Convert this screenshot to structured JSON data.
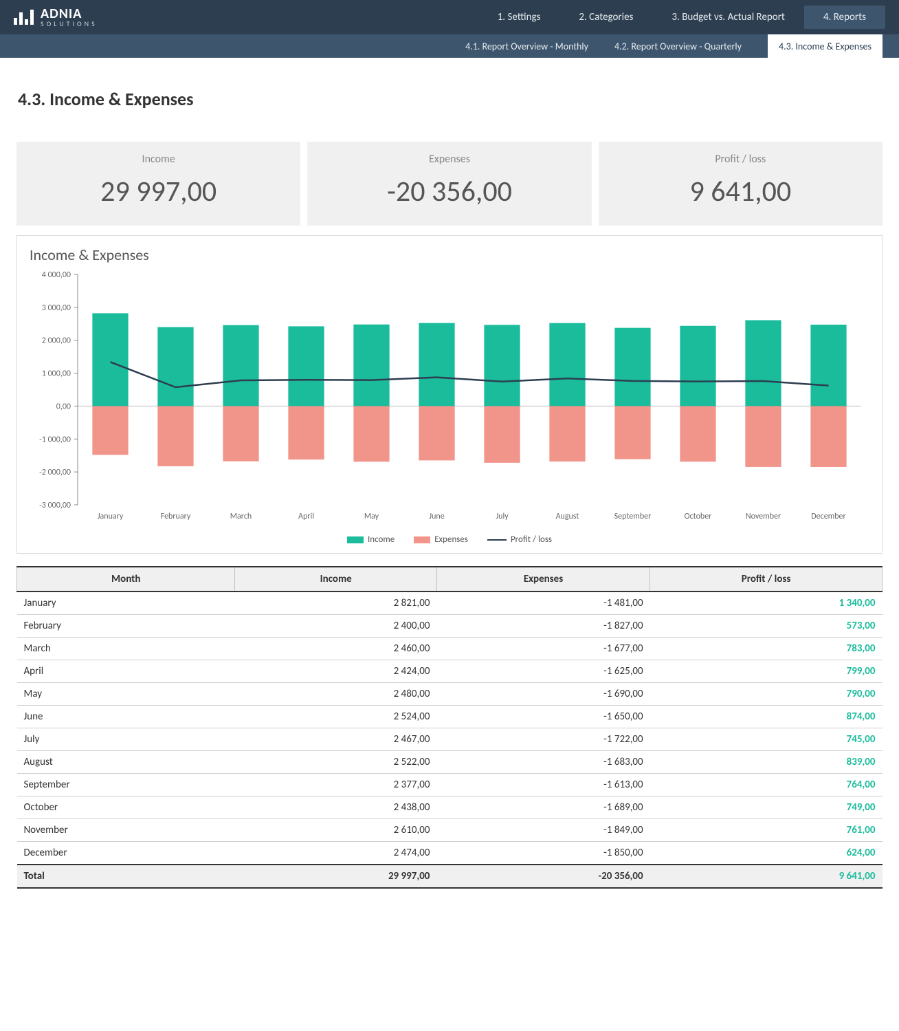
{
  "brand": {
    "name": "ADNIA",
    "sub": "SOLUTIONS"
  },
  "nav": {
    "items": [
      {
        "label": "1. Settings",
        "active": false
      },
      {
        "label": "2. Categories",
        "active": false
      },
      {
        "label": "3. Budget vs. Actual Report",
        "active": false
      },
      {
        "label": "4. Reports",
        "active": true
      }
    ],
    "sub": [
      {
        "label": "4.1. Report Overview - Monthly",
        "active": false
      },
      {
        "label": "4.2. Report Overview - Quarterly",
        "active": false
      },
      {
        "label": "4.3. Income & Expenses",
        "active": true
      }
    ]
  },
  "page_title": "4.3. Income & Expenses",
  "kpis": [
    {
      "label": "Income",
      "value": "29 997,00"
    },
    {
      "label": "Expenses",
      "value": "-20 356,00"
    },
    {
      "label": "Profit / loss",
      "value": "9 641,00"
    }
  ],
  "chart": {
    "title": "Income & Expenses",
    "type": "bar+line",
    "months": [
      "January",
      "February",
      "March",
      "April",
      "May",
      "June",
      "July",
      "August",
      "September",
      "October",
      "November",
      "December"
    ],
    "income": [
      2821,
      2400,
      2460,
      2424,
      2480,
      2524,
      2467,
      2522,
      2377,
      2438,
      2610,
      2474
    ],
    "expenses": [
      -1481,
      -1827,
      -1677,
      -1625,
      -1690,
      -1650,
      -1722,
      -1683,
      -1613,
      -1689,
      -1849,
      -1850
    ],
    "profit": [
      1340,
      573,
      783,
      799,
      790,
      874,
      745,
      839,
      764,
      749,
      761,
      624
    ],
    "y_ticks": [
      4000,
      3000,
      2000,
      1000,
      0,
      -1000,
      -2000,
      -3000
    ],
    "y_tick_labels": [
      "4 000,00",
      "3 000,00",
      "2 000,00",
      "1 000,00",
      "0,00",
      "-1 000,00",
      "-2 000,00",
      "-3 000,00"
    ],
    "colors": {
      "income": "#1abc9c",
      "expenses": "#f1948a",
      "profit_line": "#2c3e50",
      "axis": "#888888",
      "zero_line": "#bbbbbb",
      "text": "#666666"
    },
    "bar_width_ratio": 0.55,
    "line_width": 2.5,
    "legend": {
      "income": "Income",
      "expenses": "Expenses",
      "profit": "Profit / loss"
    }
  },
  "table": {
    "headers": [
      "Month",
      "Income",
      "Expenses",
      "Profit / loss"
    ],
    "profit_color": "#1abc9c",
    "rows": [
      {
        "month": "January",
        "income": "2 821,00",
        "expenses": "-1 481,00",
        "profit": "1 340,00"
      },
      {
        "month": "February",
        "income": "2 400,00",
        "expenses": "-1 827,00",
        "profit": "573,00"
      },
      {
        "month": "March",
        "income": "2 460,00",
        "expenses": "-1 677,00",
        "profit": "783,00"
      },
      {
        "month": "April",
        "income": "2 424,00",
        "expenses": "-1 625,00",
        "profit": "799,00"
      },
      {
        "month": "May",
        "income": "2 480,00",
        "expenses": "-1 690,00",
        "profit": "790,00"
      },
      {
        "month": "June",
        "income": "2 524,00",
        "expenses": "-1 650,00",
        "profit": "874,00"
      },
      {
        "month": "July",
        "income": "2 467,00",
        "expenses": "-1 722,00",
        "profit": "745,00"
      },
      {
        "month": "August",
        "income": "2 522,00",
        "expenses": "-1 683,00",
        "profit": "839,00"
      },
      {
        "month": "September",
        "income": "2 377,00",
        "expenses": "-1 613,00",
        "profit": "764,00"
      },
      {
        "month": "October",
        "income": "2 438,00",
        "expenses": "-1 689,00",
        "profit": "749,00"
      },
      {
        "month": "November",
        "income": "2 610,00",
        "expenses": "-1 849,00",
        "profit": "761,00"
      },
      {
        "month": "December",
        "income": "2 474,00",
        "expenses": "-1 850,00",
        "profit": "624,00"
      }
    ],
    "total": {
      "month": "Total",
      "income": "29 997,00",
      "expenses": "-20 356,00",
      "profit": "9 641,00"
    }
  }
}
